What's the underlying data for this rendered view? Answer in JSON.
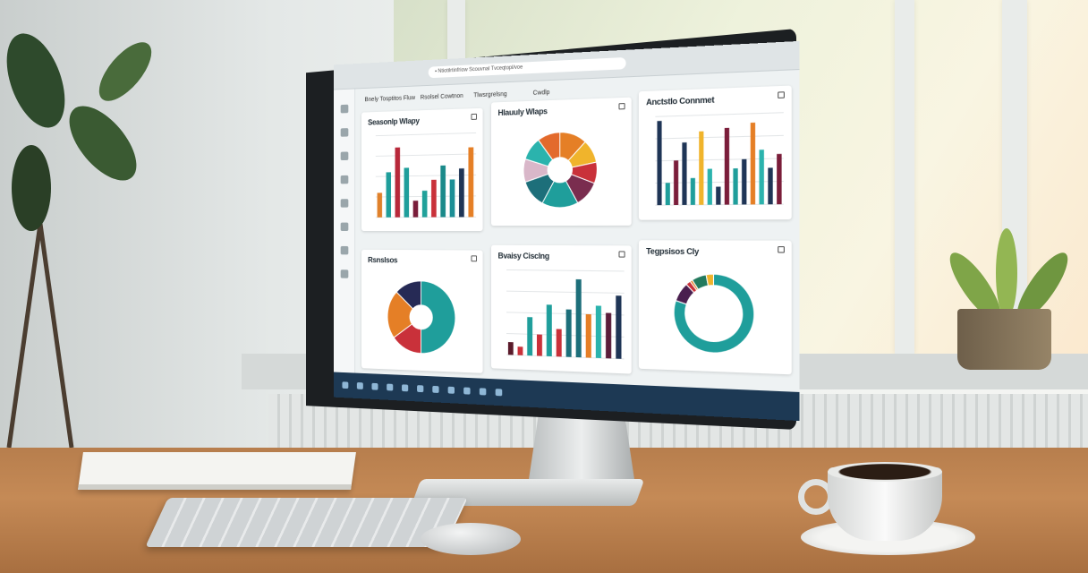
{
  "screen": {
    "url": "▪ Ntiotilrtinfriow Scouvnal Tvceqtopl/voe",
    "tabs": [
      "Bnely Tosptitos Fluw",
      "Rsolsel Cowtnon",
      "Tlwsrgrelsng",
      "Cwdlp"
    ],
    "panels": [
      {
        "title": "Seasonlp Wlapy",
        "type": "bar",
        "colors": [
          "#e0812b",
          "#1f9e9b",
          "#b8283a",
          "#1f9e9b",
          "#7a1d3a",
          "#20a19a",
          "#c9313a",
          "#1a8a8a",
          "#1c8f96",
          "#1f3556",
          "#e57f26"
        ],
        "values": [
          30,
          55,
          85,
          60,
          20,
          32,
          45,
          62,
          45,
          58,
          83
        ]
      },
      {
        "title": "Hlauuly Wlaps",
        "type": "donut",
        "colors": [
          "#e57f26",
          "#f0b42c",
          "#c9313a",
          "#7a2d4f",
          "#1f9e9b",
          "#1d6f7a",
          "#d9b7c9",
          "#2bb3ad",
          "#e36a2c"
        ],
        "values": [
          12,
          10,
          9,
          11,
          16,
          12,
          10,
          10,
          10
        ]
      },
      {
        "title": "Anctstlo Connmet",
        "type": "bar",
        "colors": [
          "#1f3556",
          "#1f9e9b",
          "#7a1d3a",
          "#1f3556",
          "#1f9e9b",
          "#f0b42c",
          "#2bb3ad",
          "#1f3556",
          "#7a1d3a",
          "#1f9e9b",
          "#1f3556",
          "#e57f26",
          "#2bb3ad",
          "#1f3556",
          "#7a1d3a"
        ],
        "values": [
          95,
          25,
          50,
          70,
          30,
          82,
          40,
          20,
          85,
          40,
          50,
          90,
          60,
          40,
          55
        ]
      },
      {
        "title": "Rsnslsos",
        "type": "donut",
        "colors": [
          "#1f9e9b",
          "#c9313a",
          "#e57f26",
          "#262a55"
        ],
        "values": [
          50,
          15,
          22,
          13
        ]
      },
      {
        "title": "Bvaisy Cisclng",
        "type": "bar",
        "colors": [
          "#5a1a2a",
          "#c9313a",
          "#1f9e9b",
          "#c9313a",
          "#1f9e9b",
          "#c9313a",
          "#1d6f7a",
          "#1d6f7a",
          "#e57f26",
          "#2bb3ad",
          "#5a1d3a",
          "#1f3556"
        ],
        "values": [
          15,
          10,
          45,
          25,
          60,
          32,
          55,
          90,
          50,
          60,
          52,
          72
        ]
      },
      {
        "title": "Tegpsisos Cly",
        "type": "donut",
        "colors": [
          "#1f9e9b",
          "#4a1f4f",
          "#c9313a",
          "#e57f26",
          "#237a5e",
          "#f0b42c"
        ],
        "values": [
          80,
          8,
          2,
          1,
          6,
          3
        ]
      }
    ]
  }
}
